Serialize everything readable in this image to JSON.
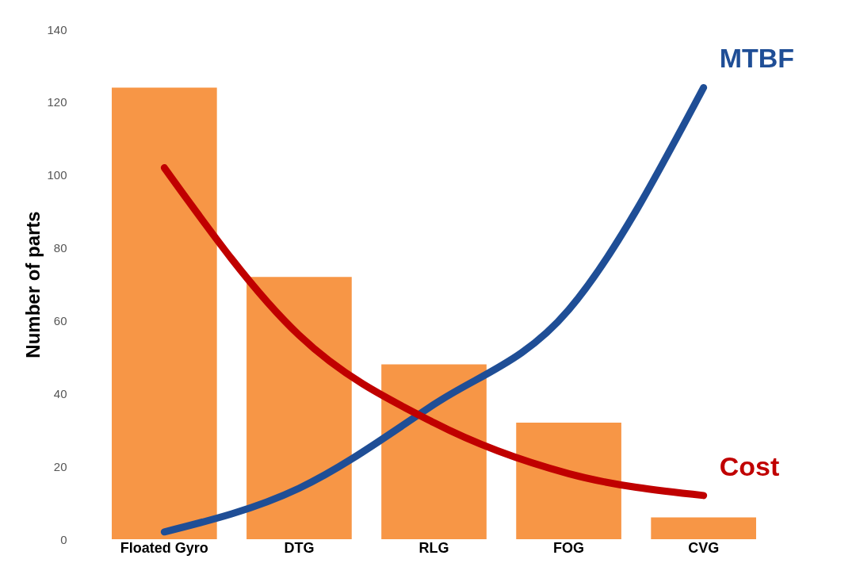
{
  "chart_data": {
    "type": "bar",
    "ylabel": "Number of parts",
    "categories": [
      "Floated Gyro",
      "DTG",
      "RLG",
      "FOG",
      "CVG"
    ],
    "series": [
      {
        "color": "#f79646",
        "values": [
          124,
          72,
          48,
          32,
          6
        ]
      },
      {
        "type": "line",
        "name": "MTBF",
        "color": "#1f4e96",
        "values": [
          2,
          14,
          37,
          63,
          124
        ]
      },
      {
        "type": "line",
        "name": "Cost",
        "color": "#c00000",
        "values": [
          102,
          56,
          32,
          18,
          12
        ]
      }
    ],
    "ylim": [
      0,
      140
    ],
    "yticks": [
      0,
      20,
      40,
      60,
      80,
      100,
      120,
      140
    ],
    "grid": false
  }
}
